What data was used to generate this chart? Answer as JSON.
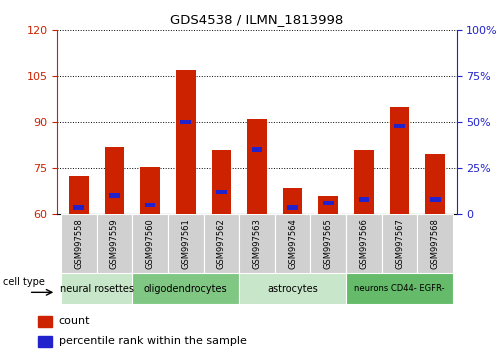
{
  "title": "GDS4538 / ILMN_1813998",
  "samples": [
    "GSM997558",
    "GSM997559",
    "GSM997560",
    "GSM997561",
    "GSM997562",
    "GSM997563",
    "GSM997564",
    "GSM997565",
    "GSM997566",
    "GSM997567",
    "GSM997568"
  ],
  "counts": [
    72.5,
    82.0,
    75.5,
    107.0,
    81.0,
    91.0,
    68.5,
    66.0,
    81.0,
    95.0,
    79.5
  ],
  "percentile_vals": [
    3.5,
    10.0,
    5.0,
    50.0,
    12.0,
    35.0,
    3.5,
    6.0,
    8.0,
    48.0,
    8.0
  ],
  "ylim_left": [
    60,
    120
  ],
  "ylim_right": [
    0,
    100
  ],
  "yticks_left": [
    60,
    75,
    90,
    105,
    120
  ],
  "ytick_labels_left": [
    "60",
    "75",
    "90",
    "105",
    "120"
  ],
  "yticks_right": [
    0,
    25,
    50,
    75,
    100
  ],
  "ytick_labels_right": [
    "0",
    "25%",
    "50%",
    "75%",
    "100%"
  ],
  "bar_color": "#cc2200",
  "marker_color": "#2222cc",
  "cell_groups": [
    {
      "label": "neural rosettes",
      "start": 0,
      "end": 1,
      "color": "#c8e6c9"
    },
    {
      "label": "oligodendrocytes",
      "start": 2,
      "end": 4,
      "color": "#81c784"
    },
    {
      "label": "astrocytes",
      "start": 5,
      "end": 7,
      "color": "#c8e6c9"
    },
    {
      "label": "neurons CD44- EGFR-",
      "start": 8,
      "end": 10,
      "color": "#66bb6a"
    }
  ],
  "cell_type_label": "cell type",
  "legend_count_label": "count",
  "legend_percentile_label": "percentile rank within the sample",
  "tick_color_left": "#cc2200",
  "tick_color_right": "#2222cc"
}
